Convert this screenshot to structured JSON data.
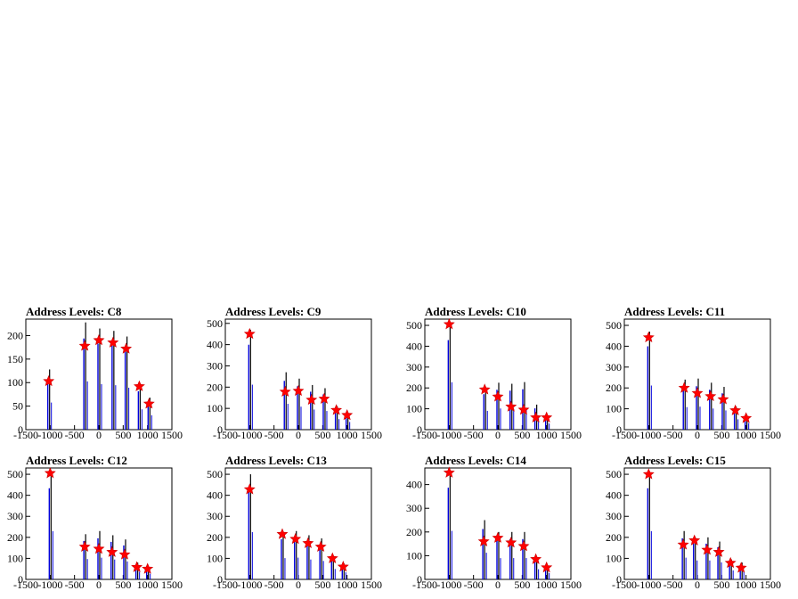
{
  "chart_data": [
    {
      "type": "histogram-peaks",
      "title": "Address Levels: C8",
      "xlim": [
        -1500,
        1500
      ],
      "yticks": [
        0,
        50,
        100,
        150,
        200
      ],
      "ylim": [
        0,
        235
      ],
      "xticks": [
        -1500,
        -1000,
        -500,
        0,
        500,
        1000,
        1500
      ],
      "peaks": [
        {
          "x": -1030,
          "y": 103
        },
        {
          "x": -290,
          "y": 178
        },
        {
          "x": 0,
          "y": 190
        },
        {
          "x": 290,
          "y": 185
        },
        {
          "x": 560,
          "y": 172
        },
        {
          "x": 830,
          "y": 92
        },
        {
          "x": 1030,
          "y": 55
        }
      ],
      "bars": [
        {
          "x": -1030,
          "y": 128
        },
        {
          "x": -290,
          "y": 228
        },
        {
          "x": 0,
          "y": 215
        },
        {
          "x": 290,
          "y": 210
        },
        {
          "x": 560,
          "y": 198
        },
        {
          "x": 830,
          "y": 96
        },
        {
          "x": 1030,
          "y": 68
        }
      ]
    },
    {
      "type": "histogram-peaks",
      "title": "Address Levels: C9",
      "xlim": [
        -1500,
        1500
      ],
      "yticks": [
        0,
        100,
        200,
        300,
        400,
        500
      ],
      "ylim": [
        0,
        520
      ],
      "xticks": [
        -1500,
        -1000,
        -500,
        0,
        500,
        1000,
        1500
      ],
      "peaks": [
        {
          "x": -1000,
          "y": 450
        },
        {
          "x": -270,
          "y": 178
        },
        {
          "x": 0,
          "y": 182
        },
        {
          "x": 270,
          "y": 140
        },
        {
          "x": 530,
          "y": 145
        },
        {
          "x": 780,
          "y": 92
        },
        {
          "x": 1000,
          "y": 68
        }
      ],
      "bars": [
        {
          "x": -1000,
          "y": 470
        },
        {
          "x": -270,
          "y": 270
        },
        {
          "x": 0,
          "y": 240
        },
        {
          "x": 270,
          "y": 210
        },
        {
          "x": 530,
          "y": 195
        },
        {
          "x": 780,
          "y": 110
        },
        {
          "x": 1000,
          "y": 80
        }
      ]
    },
    {
      "type": "histogram-peaks",
      "title": "Address Levels: C10",
      "xlim": [
        -1500,
        1500
      ],
      "yticks": [
        0,
        100,
        200,
        300,
        400,
        500
      ],
      "ylim": [
        0,
        530
      ],
      "xticks": [
        -1500,
        -1000,
        -500,
        0,
        500,
        1000,
        1500
      ],
      "peaks": [
        {
          "x": -1000,
          "y": 505
        },
        {
          "x": -270,
          "y": 192
        },
        {
          "x": 0,
          "y": 158
        },
        {
          "x": 270,
          "y": 110
        },
        {
          "x": 530,
          "y": 95
        },
        {
          "x": 780,
          "y": 58
        },
        {
          "x": 1000,
          "y": 58
        }
      ],
      "bars": [
        {
          "x": -1000,
          "y": 505
        },
        {
          "x": -270,
          "y": 200
        },
        {
          "x": 0,
          "y": 225
        },
        {
          "x": 270,
          "y": 220
        },
        {
          "x": 530,
          "y": 228
        },
        {
          "x": 780,
          "y": 120
        },
        {
          "x": 1000,
          "y": 65
        }
      ]
    },
    {
      "type": "histogram-peaks",
      "title": "Address Levels: C11",
      "xlim": [
        -1500,
        1500
      ],
      "yticks": [
        0,
        100,
        200,
        300,
        400,
        500
      ],
      "ylim": [
        0,
        530
      ],
      "xticks": [
        -1500,
        -1000,
        -500,
        0,
        500,
        1000,
        1500
      ],
      "peaks": [
        {
          "x": -1000,
          "y": 442
        },
        {
          "x": -270,
          "y": 200
        },
        {
          "x": 0,
          "y": 175
        },
        {
          "x": 270,
          "y": 160
        },
        {
          "x": 530,
          "y": 145
        },
        {
          "x": 780,
          "y": 92
        },
        {
          "x": 1000,
          "y": 55
        }
      ],
      "bars": [
        {
          "x": -1000,
          "y": 470
        },
        {
          "x": -270,
          "y": 240
        },
        {
          "x": 0,
          "y": 245
        },
        {
          "x": 270,
          "y": 225
        },
        {
          "x": 530,
          "y": 205
        },
        {
          "x": 780,
          "y": 110
        },
        {
          "x": 1000,
          "y": 70
        }
      ]
    },
    {
      "type": "histogram-peaks",
      "title": "Address Levels: C12",
      "xlim": [
        -1500,
        1500
      ],
      "yticks": [
        0,
        100,
        200,
        300,
        400,
        500
      ],
      "ylim": [
        0,
        530
      ],
      "xticks": [
        -1500,
        -1000,
        -500,
        0,
        500,
        1000,
        1500
      ],
      "peaks": [
        {
          "x": -1000,
          "y": 505
        },
        {
          "x": -290,
          "y": 155
        },
        {
          "x": 0,
          "y": 145
        },
        {
          "x": 270,
          "y": 130
        },
        {
          "x": 530,
          "y": 118
        },
        {
          "x": 780,
          "y": 58
        },
        {
          "x": 1000,
          "y": 50
        }
      ],
      "bars": [
        {
          "x": -1000,
          "y": 510
        },
        {
          "x": -290,
          "y": 215
        },
        {
          "x": 0,
          "y": 230
        },
        {
          "x": 270,
          "y": 210
        },
        {
          "x": 530,
          "y": 190
        },
        {
          "x": 780,
          "y": 80
        },
        {
          "x": 1000,
          "y": 60
        }
      ]
    },
    {
      "type": "histogram-peaks",
      "title": "Address Levels: C13",
      "xlim": [
        -1500,
        1500
      ],
      "yticks": [
        0,
        100,
        200,
        300,
        400,
        500
      ],
      "ylim": [
        0,
        530
      ],
      "xticks": [
        -1500,
        -1000,
        -500,
        0,
        500,
        1000,
        1500
      ],
      "peaks": [
        {
          "x": -1000,
          "y": 428
        },
        {
          "x": -330,
          "y": 215
        },
        {
          "x": -60,
          "y": 192
        },
        {
          "x": 200,
          "y": 172
        },
        {
          "x": 460,
          "y": 155
        },
        {
          "x": 700,
          "y": 100
        },
        {
          "x": 920,
          "y": 60
        }
      ],
      "bars": [
        {
          "x": -1000,
          "y": 500
        },
        {
          "x": -330,
          "y": 225
        },
        {
          "x": -60,
          "y": 230
        },
        {
          "x": 200,
          "y": 210
        },
        {
          "x": 460,
          "y": 195
        },
        {
          "x": 700,
          "y": 110
        },
        {
          "x": 920,
          "y": 75
        }
      ]
    },
    {
      "type": "histogram-peaks",
      "title": "Address Levels: C14",
      "xlim": [
        -1500,
        1500
      ],
      "yticks": [
        0,
        100,
        200,
        300,
        400
      ],
      "ylim": [
        0,
        470
      ],
      "xticks": [
        -1500,
        -1000,
        -500,
        0,
        500,
        1000,
        1500
      ],
      "peaks": [
        {
          "x": -1000,
          "y": 450
        },
        {
          "x": -290,
          "y": 160
        },
        {
          "x": 0,
          "y": 175
        },
        {
          "x": 270,
          "y": 155
        },
        {
          "x": 530,
          "y": 140
        },
        {
          "x": 780,
          "y": 85
        },
        {
          "x": 1000,
          "y": 50
        }
      ],
      "bars": [
        {
          "x": -1000,
          "y": 455
        },
        {
          "x": -290,
          "y": 250
        },
        {
          "x": 0,
          "y": 200
        },
        {
          "x": 270,
          "y": 200
        },
        {
          "x": 530,
          "y": 200
        },
        {
          "x": 780,
          "y": 95
        },
        {
          "x": 1000,
          "y": 60
        }
      ]
    },
    {
      "type": "histogram-peaks",
      "title": "Address Levels: C15",
      "xlim": [
        -1500,
        1500
      ],
      "yticks": [
        0,
        100,
        200,
        300,
        400,
        500
      ],
      "ylim": [
        0,
        530
      ],
      "xticks": [
        -1500,
        -1000,
        -500,
        0,
        500,
        1000,
        1500
      ],
      "peaks": [
        {
          "x": -1000,
          "y": 500
        },
        {
          "x": -290,
          "y": 165
        },
        {
          "x": -60,
          "y": 185
        },
        {
          "x": 200,
          "y": 140
        },
        {
          "x": 440,
          "y": 130
        },
        {
          "x": 680,
          "y": 78
        },
        {
          "x": 900,
          "y": 55
        }
      ],
      "bars": [
        {
          "x": -1000,
          "y": 510
        },
        {
          "x": -290,
          "y": 230
        },
        {
          "x": -60,
          "y": 200
        },
        {
          "x": 200,
          "y": 200
        },
        {
          "x": 440,
          "y": 180
        },
        {
          "x": 680,
          "y": 95
        },
        {
          "x": 900,
          "y": 80
        }
      ]
    }
  ],
  "colors": {
    "axis": "#000000",
    "bar_dark": "#000000",
    "bar_blue": "#0000dd",
    "marker": "#ff0000"
  }
}
